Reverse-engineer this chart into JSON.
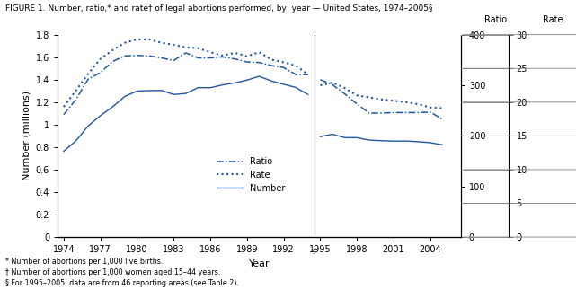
{
  "title": "FIGURE 1. Number, ratio,* and rate† of legal abortions performed, by  year — United States, 1974–2005§",
  "xlabel": "Year",
  "ylabel": "Number (millions)",
  "ylabel_right1": "Ratio",
  "ylabel_right2": "Rate",
  "footnote1": "* Number of abortions per 1,000 live births.",
  "footnote2": "† Number of abortions per 1,000 women aged 15–44 years.",
  "footnote3": "§ For 1995–2005, data are from 46 reporting areas (see Table 2).",
  "vertical_line_x": 1994.5,
  "vertical_line_label": "§",
  "line_color": "#2255a4",
  "bg_color": "#ffffff",
  "ylim": [
    0,
    1.8
  ],
  "xlim": [
    1973.5,
    2006.5
  ],
  "yticks": [
    0,
    0.2,
    0.4,
    0.6,
    0.8,
    1.0,
    1.2,
    1.4,
    1.6,
    1.8
  ],
  "xticks": [
    1974,
    1977,
    1980,
    1983,
    1986,
    1989,
    1992,
    1995,
    1998,
    2001,
    2004
  ],
  "years_pre": [
    1974,
    1975,
    1976,
    1977,
    1978,
    1979,
    1980,
    1981,
    1982,
    1983,
    1984,
    1985,
    1986,
    1987,
    1988,
    1989,
    1990,
    1991,
    1992,
    1993,
    1994
  ],
  "years_post": [
    1995,
    1996,
    1997,
    1998,
    1999,
    2000,
    2001,
    2002,
    2003,
    2004,
    2005
  ],
  "num_pre": [
    0.763,
    0.855,
    0.988,
    1.079,
    1.158,
    1.251,
    1.298,
    1.303,
    1.304,
    1.268,
    1.277,
    1.329,
    1.328,
    1.353,
    1.371,
    1.396,
    1.429,
    1.388,
    1.359,
    1.33,
    1.267
  ],
  "num_post": [
    0.893,
    0.914,
    0.884,
    0.884,
    0.862,
    0.857,
    0.853,
    0.854,
    0.848,
    0.839,
    0.82
  ],
  "ratio_pre_raw": [
    242,
    272,
    312,
    325,
    347,
    358,
    359,
    358,
    354,
    349,
    364,
    354,
    354,
    356,
    352,
    346,
    345,
    339,
    335,
    321,
    321
  ],
  "ratio_post_raw": [
    311,
    301,
    283,
    263,
    245,
    245,
    246,
    246,
    246,
    247,
    233
  ],
  "rate_pre_raw": [
    19.3,
    21.7,
    24.2,
    26.4,
    27.7,
    28.8,
    29.3,
    29.3,
    28.8,
    28.5,
    28.1,
    28.0,
    27.4,
    26.9,
    27.3,
    26.8,
    27.4,
    26.3,
    25.9,
    25.4,
    24.1
  ],
  "rate_post_raw": [
    22.5,
    22.9,
    22.1,
    21.0,
    20.7,
    20.4,
    20.2,
    20.0,
    19.7,
    19.2,
    19.1
  ],
  "ratio_right_ticks": [
    0,
    100,
    200,
    300,
    400
  ],
  "rate_right_ticks": [
    0,
    5,
    10,
    15,
    20,
    25,
    30
  ],
  "ratio_max": 400,
  "rate_max": 30
}
